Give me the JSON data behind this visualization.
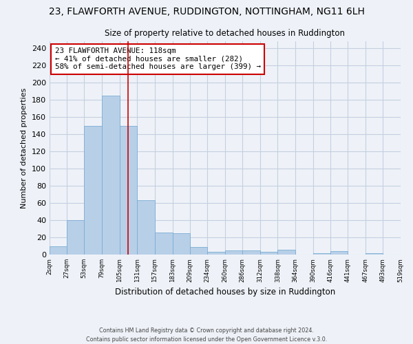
{
  "title": "23, FLAWFORTH AVENUE, RUDDINGTON, NOTTINGHAM, NG11 6LH",
  "subtitle": "Size of property relative to detached houses in Ruddington",
  "xlabel": "Distribution of detached houses by size in Ruddington",
  "ylabel": "Number of detached properties",
  "bin_edges": [
    2,
    27,
    53,
    79,
    105,
    131,
    157,
    183,
    209,
    234,
    260,
    286,
    312,
    338,
    364,
    390,
    416,
    441,
    467,
    493,
    519
  ],
  "bar_heights": [
    10,
    40,
    150,
    185,
    150,
    63,
    26,
    25,
    9,
    3,
    5,
    5,
    3,
    6,
    0,
    2,
    4,
    0,
    2,
    0
  ],
  "bar_color": "#b8cfe8",
  "bar_edgecolor": "#7aadd4",
  "vline_x": 118,
  "vline_color": "#cc0000",
  "annotation_text": "23 FLAWFORTH AVENUE: 118sqm\n← 41% of detached houses are smaller (282)\n58% of semi-detached houses are larger (399) →",
  "annotation_box_color": "#ffffff",
  "annotation_box_edgecolor": "#cc0000",
  "yticks": [
    0,
    20,
    40,
    60,
    80,
    100,
    120,
    140,
    160,
    180,
    200,
    220,
    240
  ],
  "ylim": [
    0,
    248
  ],
  "xlim": [
    2,
    519
  ],
  "xtick_labels": [
    "2sqm",
    "27sqm",
    "53sqm",
    "79sqm",
    "105sqm",
    "131sqm",
    "157sqm",
    "183sqm",
    "209sqm",
    "234sqm",
    "260sqm",
    "286sqm",
    "312sqm",
    "338sqm",
    "364sqm",
    "390sqm",
    "416sqm",
    "441sqm",
    "467sqm",
    "493sqm",
    "519sqm"
  ],
  "xtick_positions": [
    2,
    27,
    53,
    79,
    105,
    131,
    157,
    183,
    209,
    234,
    260,
    286,
    312,
    338,
    364,
    390,
    416,
    441,
    467,
    493,
    519
  ],
  "footer_text": "Contains HM Land Registry data © Crown copyright and database right 2024.\nContains public sector information licensed under the Open Government Licence v.3.0.",
  "background_color": "#eef2f8",
  "plot_bg_color": "#eef2f8",
  "grid_color": "#c5cfe0"
}
